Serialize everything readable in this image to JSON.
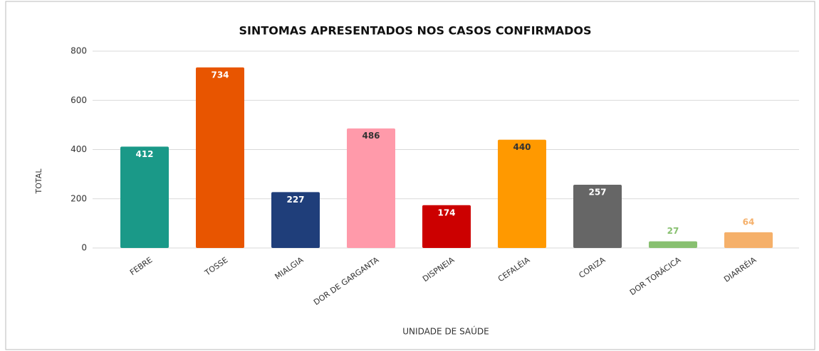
{
  "chart_data": {
    "type": "bar",
    "title": "SINTOMAS APRESENTADOS NOS CASOS CONFIRMADOS",
    "x_label": "UNIDADE DE SAÚDE",
    "y_label": "TOTAL",
    "categories": [
      "FEBRE",
      "TOSSE",
      "MIALGIA",
      "DOR DE GARGANTA",
      "DISPNEIA",
      "CEFALÉIA",
      "CORIZA",
      "DOR TORÁCICA",
      "DIARRÉIA"
    ],
    "values": [
      412,
      734,
      227,
      486,
      174,
      440,
      257,
      27,
      64
    ],
    "colors": [
      "#1a9988",
      "#e85500",
      "#1f3e7a",
      "#ff9aaa",
      "#cc0000",
      "#ff9900",
      "#666666",
      "#88c070",
      "#f5b06a"
    ],
    "ylim": [
      0,
      800
    ],
    "yticks": [
      0,
      200,
      400,
      600,
      800
    ],
    "grid": true
  }
}
